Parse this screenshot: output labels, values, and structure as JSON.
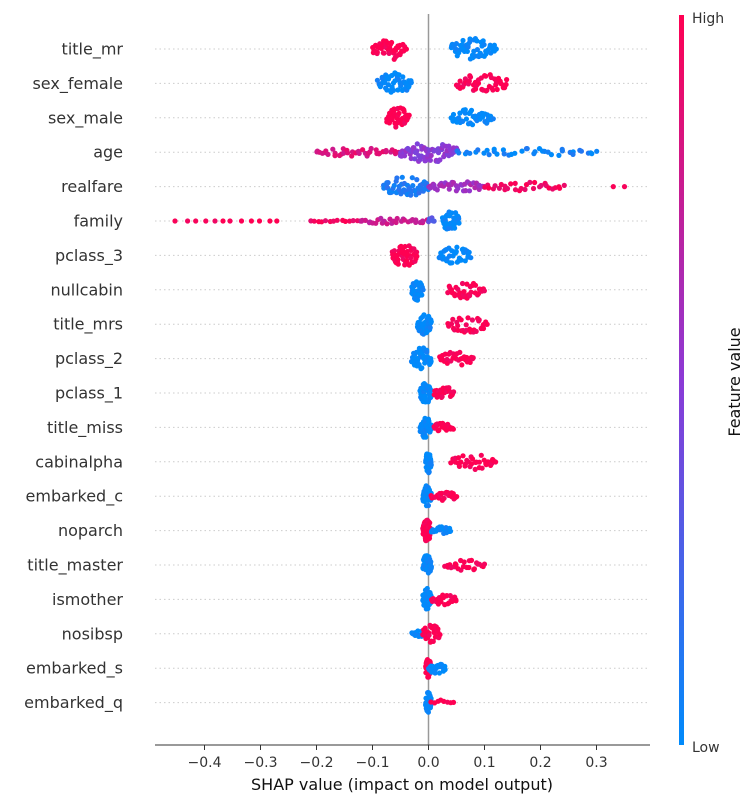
{
  "chart_data": {
    "type": "scatter",
    "subtype": "shap-beeswarm",
    "xlabel": "SHAP value (impact on model output)",
    "xticks": [
      -0.4,
      -0.3,
      -0.2,
      -0.1,
      0.0,
      0.1,
      0.2,
      0.3
    ],
    "xtick_labels": [
      "−0.4",
      "−0.3",
      "−0.2",
      "−0.1",
      "0.0",
      "0.1",
      "0.2",
      "0.3"
    ],
    "xlim": [
      -0.485,
      0.39
    ],
    "colorbar": {
      "title": "Feature value",
      "high_label": "High",
      "low_label": "Low",
      "low_color": "#008bfb",
      "high_color": "#ff0052"
    },
    "features": [
      {
        "name": "title_mr",
        "clusters": [
          {
            "from": -0.1,
            "to": -0.04,
            "v": 1.0,
            "n": 50,
            "spread": 1.0
          },
          {
            "from": 0.04,
            "to": 0.12,
            "v": 0.0,
            "n": 55,
            "spread": 1.0
          }
        ]
      },
      {
        "name": "sex_female",
        "clusters": [
          {
            "from": -0.09,
            "to": -0.03,
            "v": 0.0,
            "n": 50,
            "spread": 1.0
          },
          {
            "from": 0.05,
            "to": 0.14,
            "v": 1.0,
            "n": 45,
            "spread": 0.9
          }
        ]
      },
      {
        "name": "sex_male",
        "clusters": [
          {
            "from": -0.075,
            "to": -0.035,
            "v": 1.0,
            "n": 45,
            "spread": 1.0
          },
          {
            "from": 0.04,
            "to": 0.115,
            "v": 0.0,
            "n": 45,
            "spread": 0.8
          }
        ]
      },
      {
        "name": "age",
        "clusters": [
          {
            "from": -0.2,
            "to": -0.05,
            "v": 0.85,
            "n": 40,
            "spread": 0.4
          },
          {
            "from": -0.05,
            "to": 0.05,
            "v": 0.5,
            "n": 70,
            "spread": 1.0
          },
          {
            "from": 0.05,
            "to": 0.3,
            "v": 0.05,
            "n": 40,
            "spread": 0.35
          }
        ]
      },
      {
        "name": "realfare",
        "clusters": [
          {
            "from": -0.08,
            "to": 0.0,
            "v": 0.1,
            "n": 55,
            "spread": 0.9
          },
          {
            "from": 0.0,
            "to": 0.1,
            "v": 0.6,
            "n": 40,
            "spread": 0.5
          },
          {
            "from": 0.1,
            "to": 0.24,
            "v": 0.95,
            "n": 30,
            "spread": 0.4
          },
          {
            "from": 0.33,
            "to": 0.35,
            "v": 1.0,
            "n": 2,
            "spread": 0.0
          }
        ]
      },
      {
        "name": "family",
        "clusters": [
          {
            "from": -0.45,
            "to": -0.27,
            "v": 1.0,
            "n": 12,
            "spread": 0.0
          },
          {
            "from": -0.21,
            "to": -0.12,
            "v": 0.95,
            "n": 14,
            "spread": 0.1
          },
          {
            "from": -0.12,
            "to": 0.0,
            "v": 0.75,
            "n": 30,
            "spread": 0.3
          },
          {
            "from": 0.0,
            "to": 0.01,
            "v": 0.3,
            "n": 6,
            "spread": 0.3
          },
          {
            "from": 0.025,
            "to": 0.055,
            "v": 0.0,
            "n": 45,
            "spread": 1.0
          }
        ]
      },
      {
        "name": "pclass_3",
        "clusters": [
          {
            "from": -0.065,
            "to": -0.02,
            "v": 1.0,
            "n": 50,
            "spread": 1.0
          },
          {
            "from": 0.02,
            "to": 0.075,
            "v": 0.0,
            "n": 40,
            "spread": 0.8
          }
        ]
      },
      {
        "name": "nullcabin",
        "clusters": [
          {
            "from": -0.03,
            "to": -0.01,
            "v": 0.0,
            "n": 45,
            "spread": 1.0
          },
          {
            "from": 0.035,
            "to": 0.1,
            "v": 1.0,
            "n": 35,
            "spread": 0.8
          }
        ]
      },
      {
        "name": "title_mrs",
        "clusters": [
          {
            "from": -0.02,
            "to": 0.005,
            "v": 0.0,
            "n": 45,
            "spread": 1.0
          },
          {
            "from": 0.035,
            "to": 0.105,
            "v": 1.0,
            "n": 35,
            "spread": 0.8
          }
        ]
      },
      {
        "name": "pclass_2",
        "clusters": [
          {
            "from": -0.03,
            "to": 0.005,
            "v": 0.0,
            "n": 45,
            "spread": 1.0
          },
          {
            "from": 0.02,
            "to": 0.08,
            "v": 1.0,
            "n": 30,
            "spread": 0.7
          }
        ]
      },
      {
        "name": "pclass_1",
        "clusters": [
          {
            "from": -0.015,
            "to": 0.005,
            "v": 0.0,
            "n": 45,
            "spread": 1.0
          },
          {
            "from": 0.01,
            "to": 0.045,
            "v": 1.0,
            "n": 25,
            "spread": 0.6
          }
        ]
      },
      {
        "name": "title_miss",
        "clusters": [
          {
            "from": -0.015,
            "to": 0.005,
            "v": 0.0,
            "n": 45,
            "spread": 1.0
          },
          {
            "from": 0.01,
            "to": 0.045,
            "v": 1.0,
            "n": 25,
            "spread": 0.5
          }
        ]
      },
      {
        "name": "cabinalpha",
        "clusters": [
          {
            "from": -0.005,
            "to": 0.005,
            "v": 0.0,
            "n": 40,
            "spread": 1.0
          },
          {
            "from": 0.04,
            "to": 0.12,
            "v": 1.0,
            "n": 35,
            "spread": 0.7
          }
        ]
      },
      {
        "name": "embarked_c",
        "clusters": [
          {
            "from": -0.01,
            "to": 0.005,
            "v": 0.0,
            "n": 45,
            "spread": 1.0
          },
          {
            "from": 0.005,
            "to": 0.05,
            "v": 1.0,
            "n": 25,
            "spread": 0.5
          }
        ]
      },
      {
        "name": "noparch",
        "clusters": [
          {
            "from": -0.01,
            "to": 0.005,
            "v": 1.0,
            "n": 45,
            "spread": 1.0
          },
          {
            "from": 0.005,
            "to": 0.04,
            "v": 0.0,
            "n": 25,
            "spread": 0.4
          }
        ]
      },
      {
        "name": "title_master",
        "clusters": [
          {
            "from": -0.01,
            "to": 0.005,
            "v": 0.0,
            "n": 45,
            "spread": 1.0
          },
          {
            "from": 0.03,
            "to": 0.1,
            "v": 1.0,
            "n": 25,
            "spread": 0.5
          }
        ]
      },
      {
        "name": "ismother",
        "clusters": [
          {
            "from": -0.01,
            "to": 0.005,
            "v": 0.0,
            "n": 45,
            "spread": 1.0
          },
          {
            "from": 0.005,
            "to": 0.05,
            "v": 1.0,
            "n": 25,
            "spread": 0.5
          }
        ]
      },
      {
        "name": "nosibsp",
        "clusters": [
          {
            "from": -0.03,
            "to": 0.0,
            "v": 0.0,
            "n": 20,
            "spread": 0.3
          },
          {
            "from": -0.01,
            "to": 0.02,
            "v": 1.0,
            "n": 35,
            "spread": 0.9
          }
        ]
      },
      {
        "name": "embarked_s",
        "clusters": [
          {
            "from": -0.005,
            "to": 0.005,
            "v": 1.0,
            "n": 40,
            "spread": 1.0
          },
          {
            "from": 0.0,
            "to": 0.03,
            "v": 0.0,
            "n": 25,
            "spread": 0.5
          }
        ]
      },
      {
        "name": "embarked_q",
        "clusters": [
          {
            "from": -0.005,
            "to": 0.005,
            "v": 0.0,
            "n": 40,
            "spread": 1.0
          },
          {
            "from": 0.005,
            "to": 0.045,
            "v": 1.0,
            "n": 8,
            "spread": 0.3
          }
        ]
      }
    ]
  }
}
